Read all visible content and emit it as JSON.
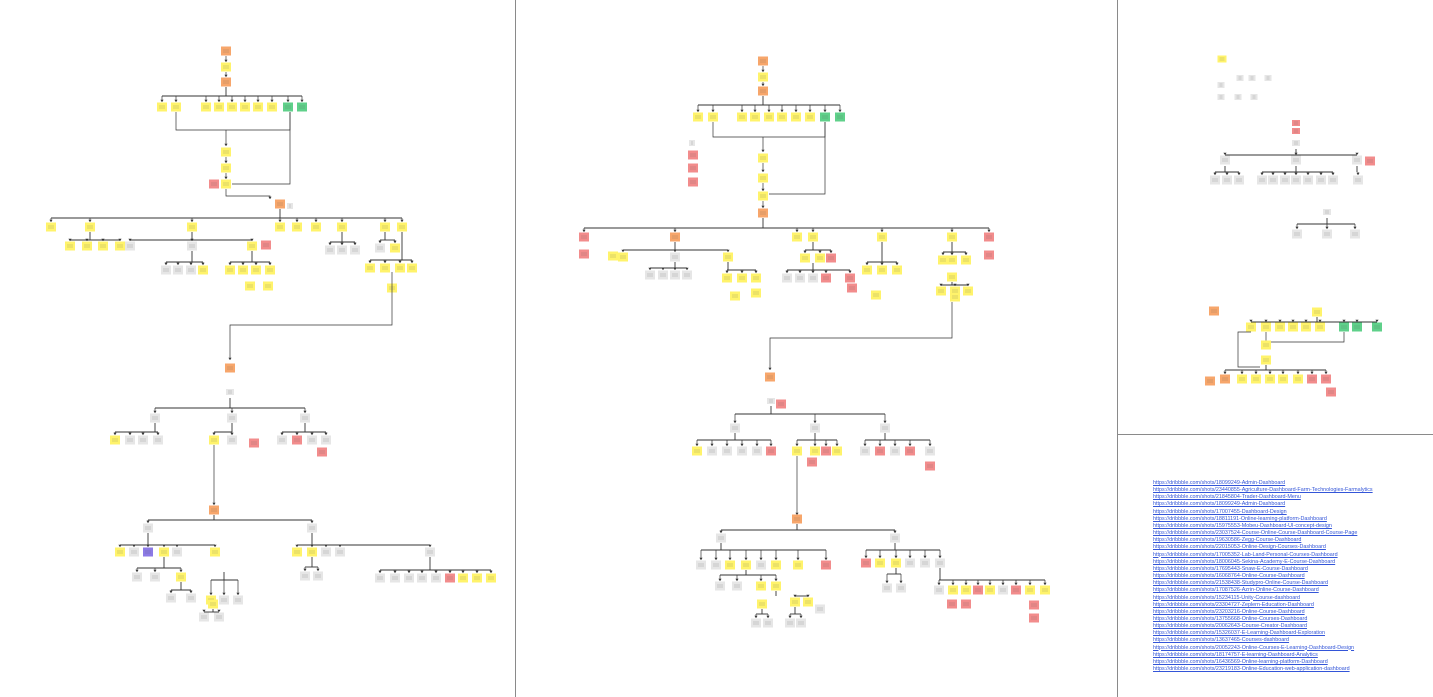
{
  "colors": {
    "background": "#ffffff",
    "divider": "#8a8a8a",
    "connector": "#333333",
    "sticky_yellow": "#fff36b",
    "sticky_orange": "#f7a66b",
    "sticky_green": "#5fd08a",
    "sticky_red": "#f28c8c",
    "sticky_purple": "#8c7ae6",
    "sticky_gray": "#e6e6e6",
    "link": "#3355d8"
  },
  "reference_links": [
    "https://dribbble.com/shots/18099249-Admin-Dashboard",
    "https://dribbble.com/shots/23440855-Agriculture-Dashboard-Farm-Technologies-Farmalytics",
    "https://dribbble.com/shots/21845804-Trader-Dashboard-Menu",
    "https://dribbble.com/shots/18099249-Admin-Dashboard",
    "https://dribbble.com/shots/17007455-Dashboard-Design",
    "https://dribbble.com/shots/18811191-Online-learning-platform-Dashboard",
    "https://dribbble.com/shots/15975553-Mobeu-Dashboard-UI-concept-design",
    "https://dribbble.com/shots/23037524-Course-Online-Course-Dashboard-Course-Page",
    "https://dribbble.com/shots/19630586-Zegg-Course-Dashboard",
    "https://dribbble.com/shots/22015053-Online-Design-Courses-Dashboard",
    "https://dribbble.com/shots/17005352-Lab-Land-Personal-Courses-Dashboard",
    "https://dribbble.com/shots/18006045-Sekina-Academy-E-Course-Dashboard",
    "https://dribbble.com/shots/17695443-Snaw-E-Course-Dashboard",
    "https://dribbble.com/shots/16068764-Online-Course-Dashboard",
    "https://dribbble.com/shots/21538438-Studypro-Online-Course-Dashboard",
    "https://dribbble.com/shots/17087526-Azrin-Online-Course-Dashboard",
    "https://dribbble.com/shots/15234115-Unity-Course-dashboard",
    "https://dribbble.com/shots/23304727-Zeplern-Education-Dashboard",
    "https://dribbble.com/shots/23203216-Online-Course-Dashboard",
    "https://dribbble.com/shots/13755668-Online-Courses-Dashboard",
    "https://dribbble.com/shots/20062643-Course-Creator-Dashboard",
    "https://dribbble.com/shots/15326037-E-Learning-Dashboard-Exploration",
    "https://dribbble.com/shots/13637465-Courses-dashboard",
    "https://dribbble.com/shots/20052243-Online-Courses-E-Learning-Dashboard-Design",
    "https://dribbble.com/shots/18174757-E-learning-Dashboard-Analytics",
    "https://dribbble.com/shots/16436569-Online-learning-platform-Dashboard",
    "https://dribbble.com/shots/23219183-Online-Education-web-application-dashboard"
  ]
}
